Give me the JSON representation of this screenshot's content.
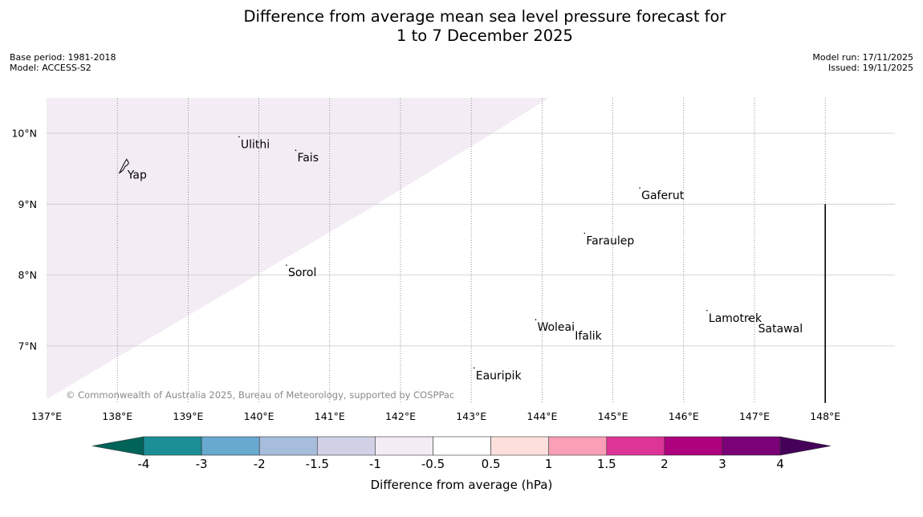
{
  "title": {
    "line1": "Difference from average mean sea level pressure forecast for",
    "line2": "1 to 7 December 2025"
  },
  "meta_left": {
    "base_period": "Base period: 1981-2018",
    "model": "Model: ACCESS-S2"
  },
  "meta_right": {
    "model_run": "Model run: 17/11/2025",
    "issued": "Issued: 19/11/2025"
  },
  "map": {
    "lon_range": [
      137,
      148.8
    ],
    "lat_range": [
      6.25,
      10.5
    ],
    "lon_ticks": [
      137,
      138,
      139,
      140,
      141,
      142,
      143,
      144,
      145,
      146,
      147,
      148
    ],
    "lon_tick_labels": [
      "137°E",
      "138°E",
      "139°E",
      "140°E",
      "141°E",
      "142°E",
      "143°E",
      "144°E",
      "145°E",
      "146°E",
      "147°E",
      "148°E"
    ],
    "lat_ticks": [
      7,
      8,
      9,
      10
    ],
    "lat_tick_labels": [
      "7°N",
      "8°N",
      "9°N",
      "10°N"
    ],
    "shaded_region_color": "#f3ecf5",
    "shaded_region_boundary": [
      [
        137,
        6.25
      ],
      [
        141.5,
        8.9
      ],
      [
        143.3,
        10.0
      ],
      [
        144.1,
        10.5
      ],
      [
        137,
        10.5
      ]
    ],
    "vertical_line": {
      "lon": 148.0,
      "lat_from": 6.25,
      "lat_to": 9.0
    },
    "places": [
      {
        "name": "Yap",
        "lon": 138.12,
        "lat": 9.52
      },
      {
        "name": "Ulithi",
        "lon": 139.72,
        "lat": 9.95
      },
      {
        "name": "Fais",
        "lon": 140.52,
        "lat": 9.76
      },
      {
        "name": "Gaferut",
        "lon": 145.38,
        "lat": 9.23
      },
      {
        "name": "Faraulep",
        "lon": 144.6,
        "lat": 8.59
      },
      {
        "name": "Sorol",
        "lon": 140.39,
        "lat": 8.14
      },
      {
        "name": "Woleai",
        "lon": 143.91,
        "lat": 7.37
      },
      {
        "name": "Ifalik",
        "lon": 144.44,
        "lat": 7.25
      },
      {
        "name": "Lamotrek",
        "lon": 146.33,
        "lat": 7.5
      },
      {
        "name": "Satawal",
        "lon": 147.03,
        "lat": 7.35
      },
      {
        "name": "Eauripik",
        "lon": 143.04,
        "lat": 6.69
      }
    ],
    "copyright": "© Commonwealth of Australia 2025, Bureau of Meteorology, supported by COSPPac"
  },
  "colorbar": {
    "label": "Difference from average (hPa)",
    "under_color": "#00635a",
    "over_color": "#45005a",
    "segments": [
      {
        "from": -4,
        "to": -3,
        "color": "#1b8f95"
      },
      {
        "from": -3,
        "to": -2,
        "color": "#67a9cf"
      },
      {
        "from": -2,
        "to": -1.5,
        "color": "#a6bddb"
      },
      {
        "from": -1.5,
        "to": -1,
        "color": "#d0d1e6"
      },
      {
        "from": -1,
        "to": -0.5,
        "color": "#f3ecf5"
      },
      {
        "from": -0.5,
        "to": 0.5,
        "color": "#ffffff"
      },
      {
        "from": 0.5,
        "to": 1,
        "color": "#fde0dd"
      },
      {
        "from": 1,
        "to": 1.5,
        "color": "#fa9fb5"
      },
      {
        "from": 1.5,
        "to": 2,
        "color": "#dd3497"
      },
      {
        "from": 2,
        "to": 3,
        "color": "#ae017e"
      },
      {
        "from": 3,
        "to": 4,
        "color": "#7a0177"
      }
    ],
    "tick_labels": [
      "-4",
      "-3",
      "-2",
      "-1.5",
      "-1",
      "-0.5",
      "0.5",
      "1",
      "1.5",
      "2",
      "3",
      "4"
    ]
  }
}
